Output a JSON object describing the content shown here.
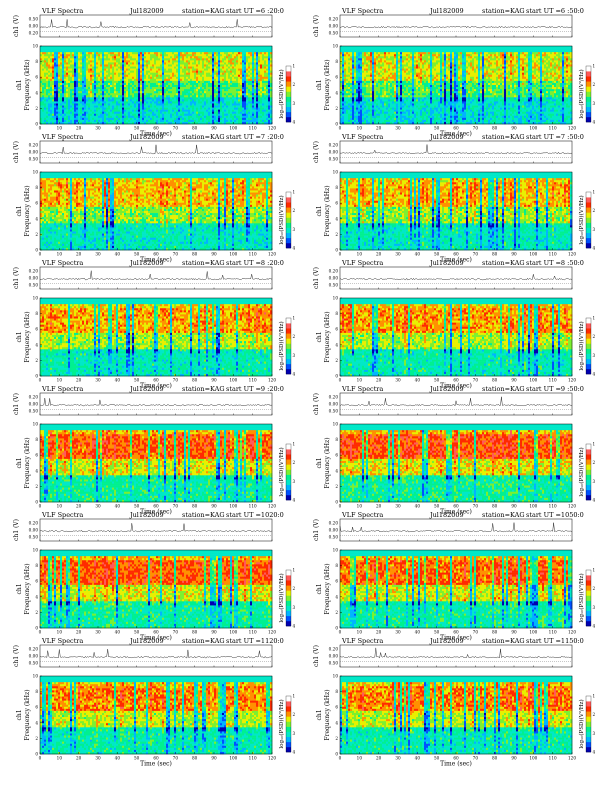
{
  "page_title": "VLF Spectra panels",
  "colors": {
    "colormap": [
      "#0000b0",
      "#0050ff",
      "#00b4ff",
      "#00e8c8",
      "#00f090",
      "#7cf030",
      "#e8f000",
      "#ff9000",
      "#ff2a00",
      "#ff5a5a",
      "#ffffff"
    ]
  },
  "chart_data": [
    {
      "type": "heatmap",
      "title": "VLF Spectra",
      "date": "Jul182009",
      "station": "station=KAG",
      "start": "start  UT  =6 :20:0",
      "xlabel": "Time  (sec)",
      "ylabel": "Frequency  (kHz)",
      "top_ylabel": "ch1 (V)",
      "channel": "ch1",
      "cbar_label": "log₁₀(PSD)(V²/Hz)",
      "xlim": [
        0,
        120
      ],
      "ylim": [
        0,
        10
      ],
      "x_ticks": [
        "0",
        "10",
        "20",
        "30",
        "40",
        "50",
        "60",
        "70",
        "80",
        "90",
        "100",
        "110",
        "120"
      ],
      "y_ticks": [
        "0",
        "2",
        "4",
        "6",
        "8",
        "10"
      ],
      "top_ticks": [
        "0.50",
        "0.00",
        "0.20"
      ],
      "cbar_ticks": [
        "4",
        "3",
        "2",
        "1"
      ],
      "activity": 0.2
    },
    {
      "type": "heatmap",
      "title": "VLF Spectra",
      "date": "Jul182009",
      "station": "station=KAG",
      "start": "start  UT  =6 :50:0",
      "xlabel": "Time  (sec)",
      "ylabel": "Frequency  (kHz)",
      "top_ylabel": "ch1 (V)",
      "channel": "ch1",
      "cbar_label": "log₁₀(PSD)(V²/Hz)",
      "xlim": [
        0,
        120
      ],
      "ylim": [
        0,
        10
      ],
      "x_ticks": [
        "0",
        "10",
        "20",
        "30",
        "40",
        "50",
        "60",
        "70",
        "80",
        "90",
        "100",
        "110",
        "120"
      ],
      "y_ticks": [
        "0",
        "2",
        "4",
        "6",
        "8",
        "10"
      ],
      "top_ticks": [
        "0.20",
        "0.00",
        "0.50"
      ],
      "cbar_ticks": [
        "4",
        "3",
        "2",
        "1"
      ],
      "activity": 0.22
    },
    {
      "type": "heatmap",
      "title": "VLF Spectra",
      "date": "Jul182009",
      "station": "station=KAG",
      "start": "start  UT  =7 :20:0",
      "xlabel": "Time  (sec)",
      "ylabel": "Frequency  (kHz)",
      "top_ylabel": "ch1 (V)",
      "channel": "ch1",
      "cbar_label": "log₁₀(PSD)(V²/Hz)",
      "xlim": [
        0,
        120
      ],
      "ylim": [
        0,
        10
      ],
      "x_ticks": [
        "0",
        "10",
        "20",
        "30",
        "40",
        "50",
        "60",
        "70",
        "80",
        "90",
        "100",
        "110",
        "120"
      ],
      "y_ticks": [
        "0",
        "2",
        "4",
        "6",
        "8",
        "10"
      ],
      "top_ticks": [
        "0.20",
        "0.00",
        "0.50"
      ],
      "cbar_ticks": [
        "4",
        "3",
        "2",
        "1"
      ],
      "activity": 0.42
    },
    {
      "type": "heatmap",
      "title": "VLF Spectra",
      "date": "Jul182009",
      "station": "station=KAG",
      "start": "start  UT  =7 :50:0",
      "xlabel": "Time  (sec)",
      "ylabel": "Frequency  (kHz)",
      "top_ylabel": "ch1 (V)",
      "channel": "ch1",
      "cbar_label": "log₁₀(PSD)(V²/Hz)",
      "xlim": [
        0,
        120
      ],
      "ylim": [
        0,
        10
      ],
      "x_ticks": [
        "0",
        "10",
        "20",
        "30",
        "40",
        "50",
        "60",
        "70",
        "80",
        "90",
        "100",
        "110",
        "120"
      ],
      "y_ticks": [
        "0",
        "2",
        "4",
        "6",
        "8",
        "10"
      ],
      "top_ticks": [
        "0.20",
        "0.00",
        "0.50"
      ],
      "cbar_ticks": [
        "4",
        "3",
        "2",
        "1"
      ],
      "activity": 0.44
    },
    {
      "type": "heatmap",
      "title": "VLF Spectra",
      "date": "Jul182009",
      "station": "station=KAG",
      "start": "start  UT  =8 :20:0",
      "xlabel": "Time  (sec)",
      "ylabel": "Frequency  (kHz)",
      "top_ylabel": "ch1 (V)",
      "channel": "ch1",
      "cbar_label": "log₁₀(PSD)(V²/Hz)",
      "xlim": [
        0,
        120
      ],
      "ylim": [
        0,
        10
      ],
      "x_ticks": [
        "0",
        "10",
        "20",
        "30",
        "40",
        "50",
        "60",
        "70",
        "80",
        "90",
        "100",
        "110",
        "120"
      ],
      "y_ticks": [
        "0",
        "2",
        "4",
        "6",
        "8",
        "10"
      ],
      "top_ticks": [
        "0.20",
        "0.00",
        "0.50"
      ],
      "cbar_ticks": [
        "4",
        "3",
        "2",
        "1"
      ],
      "activity": 0.52
    },
    {
      "type": "heatmap",
      "title": "VLF Spectra",
      "date": "Jul182009",
      "station": "station=KAG",
      "start": "start  UT  =8 :50:0",
      "xlabel": "Time  (sec)",
      "ylabel": "Frequency  (kHz)",
      "top_ylabel": "ch1 (V)",
      "channel": "ch1",
      "cbar_label": "log₁₀(PSD)(V²/Hz)",
      "xlim": [
        0,
        120
      ],
      "ylim": [
        0,
        10
      ],
      "x_ticks": [
        "0",
        "10",
        "20",
        "30",
        "40",
        "50",
        "60",
        "70",
        "80",
        "90",
        "100",
        "110",
        "120"
      ],
      "y_ticks": [
        "0",
        "2",
        "4",
        "6",
        "8",
        "10"
      ],
      "top_ticks": [
        "0.20",
        "0.00",
        "0.50"
      ],
      "cbar_ticks": [
        "4",
        "3",
        "2",
        "1"
      ],
      "activity": 0.54
    },
    {
      "type": "heatmap",
      "title": "VLF Spectra",
      "date": "Jul182009",
      "station": "station=KAG",
      "start": "start  UT  =9 :20:0",
      "xlabel": "Time  (sec)",
      "ylabel": "Frequency  (kHz)",
      "top_ylabel": "ch1 (V)",
      "channel": "ch1",
      "cbar_label": "log₁₀(PSD)(V²/Hz)",
      "xlim": [
        0,
        120
      ],
      "ylim": [
        0,
        10
      ],
      "x_ticks": [
        "0",
        "10",
        "20",
        "30",
        "40",
        "50",
        "60",
        "70",
        "80",
        "90",
        "100",
        "110",
        "120"
      ],
      "y_ticks": [
        "0",
        "2",
        "4",
        "6",
        "8",
        "10"
      ],
      "top_ticks": [
        "0.20",
        "0.00",
        "0.50"
      ],
      "cbar_ticks": [
        "4",
        "3",
        "2",
        "1"
      ],
      "activity": 0.72
    },
    {
      "type": "heatmap",
      "title": "VLF Spectra",
      "date": "Jul182009",
      "station": "station=KAG",
      "start": "start  UT  =9 :50:0",
      "xlabel": "Time  (sec)",
      "ylabel": "Frequency  (kHz)",
      "top_ylabel": "ch1 (V)",
      "channel": "ch1",
      "cbar_label": "log₁₀(PSD)(V²/Hz)",
      "xlim": [
        0,
        120
      ],
      "ylim": [
        0,
        10
      ],
      "x_ticks": [
        "0",
        "10",
        "20",
        "30",
        "40",
        "50",
        "60",
        "70",
        "80",
        "90",
        "100",
        "110",
        "120"
      ],
      "y_ticks": [
        "0",
        "2",
        "4",
        "6",
        "8",
        "10"
      ],
      "top_ticks": [
        "0.20",
        "0.00",
        "0.50"
      ],
      "cbar_ticks": [
        "4",
        "3",
        "2",
        "1"
      ],
      "activity": 0.8
    },
    {
      "type": "heatmap",
      "title": "VLF Spectra",
      "date": "Jul182009",
      "station": "station=KAG",
      "start": "start  UT  =1020:0",
      "xlabel": "Time  (sec)",
      "ylabel": "Frequency  (kHz)",
      "top_ylabel": "ch1 (V)",
      "channel": "ch1",
      "cbar_label": "log₁₀(PSD)(V²/Hz)",
      "xlim": [
        0,
        120
      ],
      "ylim": [
        0,
        10
      ],
      "x_ticks": [
        "0",
        "10",
        "20",
        "30",
        "40",
        "50",
        "60",
        "70",
        "80",
        "90",
        "100",
        "110",
        "120"
      ],
      "y_ticks": [
        "0",
        "2",
        "4",
        "6",
        "8",
        "10"
      ],
      "top_ticks": [
        "0.20",
        "0.00",
        "0.50"
      ],
      "cbar_ticks": [
        "4",
        "3",
        "2",
        "1"
      ],
      "activity": 0.74
    },
    {
      "type": "heatmap",
      "title": "VLF Spectra",
      "date": "Jul182009",
      "station": "station=KAG",
      "start": "start  UT  =1050:0",
      "xlabel": "Time  (sec)",
      "ylabel": "Frequency  (kHz)",
      "top_ylabel": "ch1 (V)",
      "channel": "ch1",
      "cbar_label": "log₁₀(PSD)(V²/Hz)",
      "xlim": [
        0,
        120
      ],
      "ylim": [
        0,
        10
      ],
      "x_ticks": [
        "0",
        "10",
        "20",
        "30",
        "40",
        "50",
        "60",
        "70",
        "80",
        "90",
        "100",
        "110",
        "120"
      ],
      "y_ticks": [
        "0",
        "2",
        "4",
        "6",
        "8",
        "10"
      ],
      "top_ticks": [
        "0.20",
        "0.00",
        "0.50"
      ],
      "cbar_ticks": [
        "4",
        "3",
        "2",
        "1"
      ],
      "activity": 0.7
    },
    {
      "type": "heatmap",
      "title": "VLF Spectra",
      "date": "Jul182009",
      "station": "station=KAG",
      "start": "start  UT  =1120:0",
      "xlabel": "Time  (sec)",
      "ylabel": "Frequency  (kHz)",
      "top_ylabel": "ch1 (V)",
      "channel": "ch1",
      "cbar_label": "log₁₀(PSD)(V²/Hz)",
      "xlim": [
        0,
        120
      ],
      "ylim": [
        0,
        10
      ],
      "x_ticks": [
        "0",
        "10",
        "20",
        "30",
        "40",
        "50",
        "60",
        "70",
        "80",
        "90",
        "100",
        "110",
        "120"
      ],
      "y_ticks": [
        "0",
        "2",
        "4",
        "6",
        "8",
        "10"
      ],
      "top_ticks": [
        "0.20",
        "0.00",
        "0.50"
      ],
      "cbar_ticks": [
        "4",
        "3",
        "2",
        "1"
      ],
      "activity": 0.6
    },
    {
      "type": "heatmap",
      "title": "VLF Spectra",
      "date": "Jul182009",
      "station": "station=KAG",
      "start": "start  UT  =1150:0",
      "xlabel": "Time  (sec)",
      "ylabel": "Frequency  (kHz)",
      "top_ylabel": "ch1 (V)",
      "channel": "ch1",
      "cbar_label": "log₁₀(PSD)(V²/Hz)",
      "xlim": [
        0,
        120
      ],
      "ylim": [
        0,
        10
      ],
      "x_ticks": [
        "0",
        "10",
        "20",
        "30",
        "40",
        "50",
        "60",
        "70",
        "80",
        "90",
        "100",
        "110",
        "120"
      ],
      "y_ticks": [
        "0",
        "2",
        "4",
        "6",
        "8",
        "10"
      ],
      "top_ticks": [
        "0.20",
        "0.00",
        "0.50"
      ],
      "cbar_ticks": [
        "4",
        "3",
        "2",
        "1"
      ],
      "activity": 0.6
    }
  ]
}
